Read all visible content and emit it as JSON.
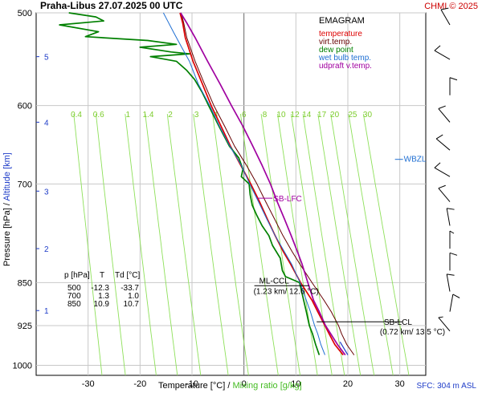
{
  "header": {
    "title": "Praha-Libus    27.07.2025 00 UTC",
    "copyright": "CHMI © 2025"
  },
  "footer": {
    "sfc": "SFC: 304 m ASL"
  },
  "legend": {
    "title": "EMAGRAM",
    "items": [
      {
        "label": "temperature",
        "color": "#dd0000"
      },
      {
        "label": "virt.temp.",
        "color": "#660000"
      },
      {
        "label": "dew point",
        "color": "#008000"
      },
      {
        "label": "wet bulb temp.",
        "color": "#1e6ed2"
      },
      {
        "label": "udpraft v.temp.",
        "color": "#a000a0"
      }
    ]
  },
  "table": {
    "header": [
      "p [hPa]",
      "T",
      "Td [°C]"
    ],
    "rows": [
      [
        "500",
        "-12.3",
        "-33.7"
      ],
      [
        "700",
        "1.3",
        "1.0"
      ],
      [
        "850",
        "10.9",
        "10.7"
      ]
    ]
  },
  "annotations": {
    "wbzl": "WBZL",
    "sb_lfc": "SB-LFC",
    "ml_ccl": "ML-CCL",
    "ml_ccl_val": "(1.23 km/ 12.6 °C)",
    "sb_lcl": "SB-LCL",
    "sb_lcl_val": "(0.72 km/ 13.5 °C)"
  },
  "chart_data": {
    "type": "line",
    "title": "EMAGRAM",
    "xlabel": "Temperature [°C]",
    "xlabel_sep": " / ",
    "xlabel2": "Mixing ratio [g/kg]",
    "ylabel": "Pressure [hPa]",
    "ylabel_sep": " / ",
    "ylabel2": "Altitude [km]",
    "xlim": [
      -40,
      35
    ],
    "ylim": [
      1020,
      500
    ],
    "y_scale": "log",
    "x_ticks": [
      -30,
      -20,
      -10,
      0,
      10,
      20,
      30
    ],
    "p_ticks": [
      500,
      600,
      700,
      850,
      925,
      1000
    ],
    "altitude_ticks": [
      {
        "km": 1,
        "p": 898
      },
      {
        "km": 2,
        "p": 795
      },
      {
        "km": 3,
        "p": 710
      },
      {
        "km": 4,
        "p": 620
      },
      {
        "km": 5,
        "p": 545
      }
    ],
    "mixing_ratio_labels": [
      "0.4",
      "0.6",
      "1",
      "1.4",
      "2",
      "3",
      "4",
      "6",
      "8",
      "10",
      "12",
      "14",
      "17",
      "20",
      "25",
      "30"
    ],
    "mixing_ratio_values": [
      0.4,
      0.6,
      1,
      1.4,
      2,
      3,
      4,
      6,
      8,
      10,
      12,
      14,
      17,
      20,
      25,
      30
    ],
    "series": [
      {
        "name": "temperature",
        "color": "#dd0000",
        "width": 1.7,
        "points": [
          [
            980,
            19.1
          ],
          [
            960,
            17.5
          ],
          [
            940,
            16.4
          ],
          [
            925,
            15.6
          ],
          [
            900,
            14.2
          ],
          [
            880,
            13.1
          ],
          [
            850,
            10.9
          ],
          [
            820,
            9.0
          ],
          [
            800,
            7.6
          ],
          [
            775,
            6.0
          ],
          [
            750,
            4.5
          ],
          [
            725,
            3.0
          ],
          [
            700,
            1.3
          ],
          [
            675,
            -0.6
          ],
          [
            650,
            -2.6
          ],
          [
            625,
            -4.4
          ],
          [
            600,
            -6.3
          ],
          [
            575,
            -8.0
          ],
          [
            550,
            -9.8
          ],
          [
            525,
            -11.3
          ],
          [
            510,
            -11.8
          ],
          [
            500,
            -12.3
          ]
        ]
      },
      {
        "name": "virt.temp.",
        "color": "#660000",
        "width": 1,
        "points": [
          [
            980,
            21.2
          ],
          [
            960,
            19.8
          ],
          [
            940,
            18.8
          ],
          [
            925,
            18.2
          ],
          [
            900,
            16.8
          ],
          [
            880,
            15.4
          ],
          [
            850,
            13.1
          ],
          [
            820,
            10.8
          ],
          [
            800,
            9.3
          ],
          [
            775,
            7.5
          ],
          [
            750,
            5.9
          ],
          [
            725,
            4.2
          ],
          [
            700,
            2.5
          ],
          [
            675,
            0.5
          ],
          [
            650,
            -1.8
          ],
          [
            625,
            -3.7
          ],
          [
            600,
            -5.8
          ],
          [
            575,
            -7.6
          ],
          [
            550,
            -9.4
          ],
          [
            525,
            -11.0
          ],
          [
            510,
            -11.6
          ],
          [
            500,
            -12.1
          ]
        ]
      },
      {
        "name": "dew point",
        "color": "#008000",
        "width": 1.7,
        "points": [
          [
            980,
            14.5
          ],
          [
            960,
            13.8
          ],
          [
            940,
            13.2
          ],
          [
            925,
            12.6
          ],
          [
            900,
            12.0
          ],
          [
            880,
            11.5
          ],
          [
            850,
            10.7
          ],
          [
            840,
            8.0
          ],
          [
            830,
            7.4
          ],
          [
            810,
            7.0
          ],
          [
            790,
            5.5
          ],
          [
            775,
            4.8
          ],
          [
            760,
            3.5
          ],
          [
            745,
            2.5
          ],
          [
            730,
            1.6
          ],
          [
            715,
            1.2
          ],
          [
            700,
            1.0
          ],
          [
            690,
            -0.5
          ],
          [
            680,
            -0.2
          ],
          [
            665,
            -1.0
          ],
          [
            650,
            -2.8
          ],
          [
            625,
            -4.8
          ],
          [
            600,
            -6.8
          ],
          [
            585,
            -8.0
          ],
          [
            570,
            -9.5
          ],
          [
            560,
            -11.0
          ],
          [
            550,
            -13.0
          ],
          [
            545,
            -18.0
          ],
          [
            542,
            -10.5
          ],
          [
            540,
            -14.0
          ],
          [
            535,
            -20.0
          ],
          [
            532,
            -13.0
          ],
          [
            528,
            -18.5
          ],
          [
            524,
            -30.5
          ],
          [
            519,
            -28.0
          ],
          [
            512,
            -35.5
          ],
          [
            508,
            -27.0
          ],
          [
            504,
            -28.5
          ],
          [
            500,
            -33.7
          ]
        ]
      },
      {
        "name": "wet bulb temp.",
        "color": "#1e6ed2",
        "width": 1,
        "points": [
          [
            980,
            15.6
          ],
          [
            960,
            14.8
          ],
          [
            940,
            14.2
          ],
          [
            925,
            13.6
          ],
          [
            900,
            12.8
          ],
          [
            880,
            12.0
          ],
          [
            850,
            10.8
          ],
          [
            820,
            9.2
          ],
          [
            800,
            7.8
          ],
          [
            775,
            6.0
          ],
          [
            750,
            4.4
          ],
          [
            725,
            2.8
          ],
          [
            700,
            1.1
          ],
          [
            675,
            -0.5
          ],
          [
            650,
            -2.7
          ],
          [
            625,
            -4.7
          ],
          [
            600,
            -6.6
          ],
          [
            575,
            -8.8
          ],
          [
            550,
            -10.5
          ],
          [
            535,
            -12.0
          ],
          [
            520,
            -13.5
          ],
          [
            505,
            -15.0
          ],
          [
            500,
            -15.5
          ]
        ]
      },
      {
        "name": "udpraft v.temp.",
        "color": "#a000a0",
        "width": 1.7,
        "points": [
          [
            980,
            19.5
          ],
          [
            960,
            18.0
          ],
          [
            940,
            16.7
          ],
          [
            925,
            15.7
          ],
          [
            900,
            14.5
          ],
          [
            880,
            13.4
          ],
          [
            850,
            12.3
          ],
          [
            820,
            11.2
          ],
          [
            800,
            10.3
          ],
          [
            775,
            9.1
          ],
          [
            750,
            7.8
          ],
          [
            725,
            6.4
          ],
          [
            700,
            5.1
          ],
          [
            675,
            3.5
          ],
          [
            650,
            1.7
          ],
          [
            625,
            -0.2
          ],
          [
            600,
            -2.4
          ],
          [
            575,
            -4.6
          ],
          [
            550,
            -7.0
          ],
          [
            525,
            -9.4
          ],
          [
            510,
            -11.0
          ],
          [
            500,
            -12.2
          ]
        ]
      }
    ],
    "surface_line": {
      "color": "#1e3cc8",
      "points": [
        [
          980,
          20.0
        ],
        [
          955,
          18.5
        ]
      ]
    },
    "annotation_anchors": {
      "wbzl": {
        "p": 667,
        "t": 30
      },
      "sb_lfc": {
        "p": 720,
        "t": 2.5,
        "t_end": 5.5
      },
      "ml_ccl": {
        "p": 862,
        "t": 12.6,
        "t_start": 2.0
      },
      "sb_lcl": {
        "p": 918,
        "t": 14.0,
        "t_end": 30.5
      }
    },
    "wind_barbs": [
      {
        "p": 512,
        "dir": 330,
        "kt": 10
      },
      {
        "p": 548,
        "dir": 300,
        "kt": 10
      },
      {
        "p": 588,
        "dir": 360,
        "kt": 10
      },
      {
        "p": 620,
        "dir": 320,
        "kt": 10
      },
      {
        "p": 655,
        "dir": 310,
        "kt": 10
      },
      {
        "p": 690,
        "dir": 300,
        "kt": 10
      },
      {
        "p": 725,
        "dir": 320,
        "kt": 10
      },
      {
        "p": 760,
        "dir": 350,
        "kt": 10
      },
      {
        "p": 795,
        "dir": 360,
        "kt": 5
      },
      {
        "p": 830,
        "dir": 360,
        "kt": 10
      },
      {
        "p": 865,
        "dir": 350,
        "kt": 10
      },
      {
        "p": 900,
        "dir": 10,
        "kt": 10
      },
      {
        "p": 935,
        "dir": 320,
        "kt": 5
      }
    ]
  }
}
